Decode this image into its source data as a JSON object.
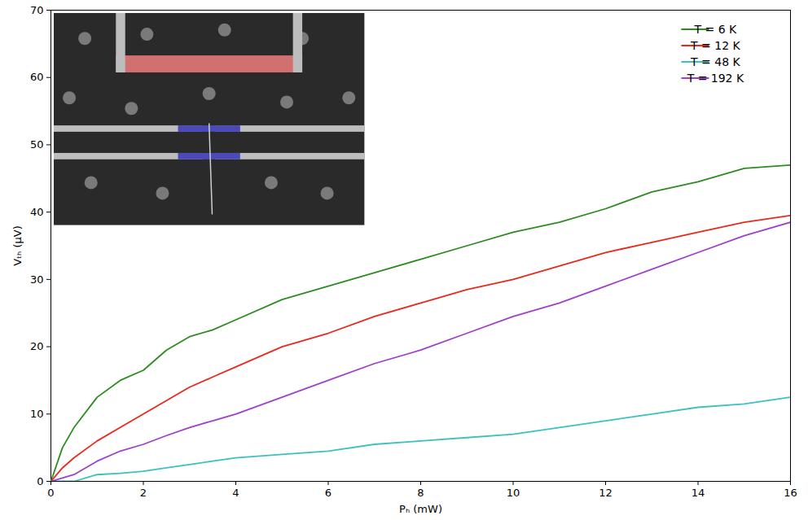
{
  "chart_data": {
    "type": "line",
    "x_label": "Pₕ (mW)",
    "y_label": "Vₜₕ (µV)",
    "x": [
      0,
      0.25,
      0.5,
      1,
      1.5,
      2,
      2.5,
      3,
      3.5,
      4,
      5,
      6,
      7,
      8,
      9,
      10,
      11,
      12,
      13,
      14,
      15,
      16
    ],
    "series": [
      {
        "name": "T = 6 K",
        "color": "#2e8b22",
        "values": [
          0,
          5,
          8,
          12.5,
          15,
          16.5,
          19.5,
          21.5,
          22.5,
          24,
          27,
          29,
          31,
          33,
          35,
          37,
          38.5,
          40.5,
          43,
          44.5,
          46.5,
          47
        ]
      },
      {
        "name": "T = 12 K",
        "color": "#e8291c",
        "values": [
          0,
          2,
          3.5,
          6,
          8,
          10,
          12,
          14,
          15.5,
          17,
          20,
          22,
          24.5,
          26.5,
          28.5,
          30,
          32,
          34,
          35.5,
          37,
          38.5,
          39.5
        ]
      },
      {
        "name": "T = 48 K",
        "color": "#3cc0c0",
        "values": [
          0,
          0,
          0,
          1,
          1.2,
          1.5,
          2,
          2.5,
          3,
          3.5,
          4,
          4.5,
          5.5,
          6,
          6.5,
          7,
          8,
          9,
          10,
          11,
          11.5,
          12.5
        ]
      },
      {
        "name": "T = 192 K",
        "color": "#a040c8",
        "values": [
          0,
          0.5,
          1,
          3,
          4.5,
          5.5,
          6.8,
          8,
          9,
          10,
          12.5,
          15,
          17.5,
          19.5,
          22,
          24.5,
          26.5,
          29,
          31.5,
          34,
          36.5,
          38.5
        ]
      }
    ],
    "xlim": [
      0,
      16
    ],
    "xticks": [
      0,
      2,
      4,
      6,
      8,
      10,
      12,
      14,
      16
    ],
    "ylim": [
      0,
      70
    ],
    "yticks": [
      0,
      10,
      20,
      30,
      40,
      50,
      60,
      70
    ],
    "grid": false,
    "legend": "top-right"
  }
}
